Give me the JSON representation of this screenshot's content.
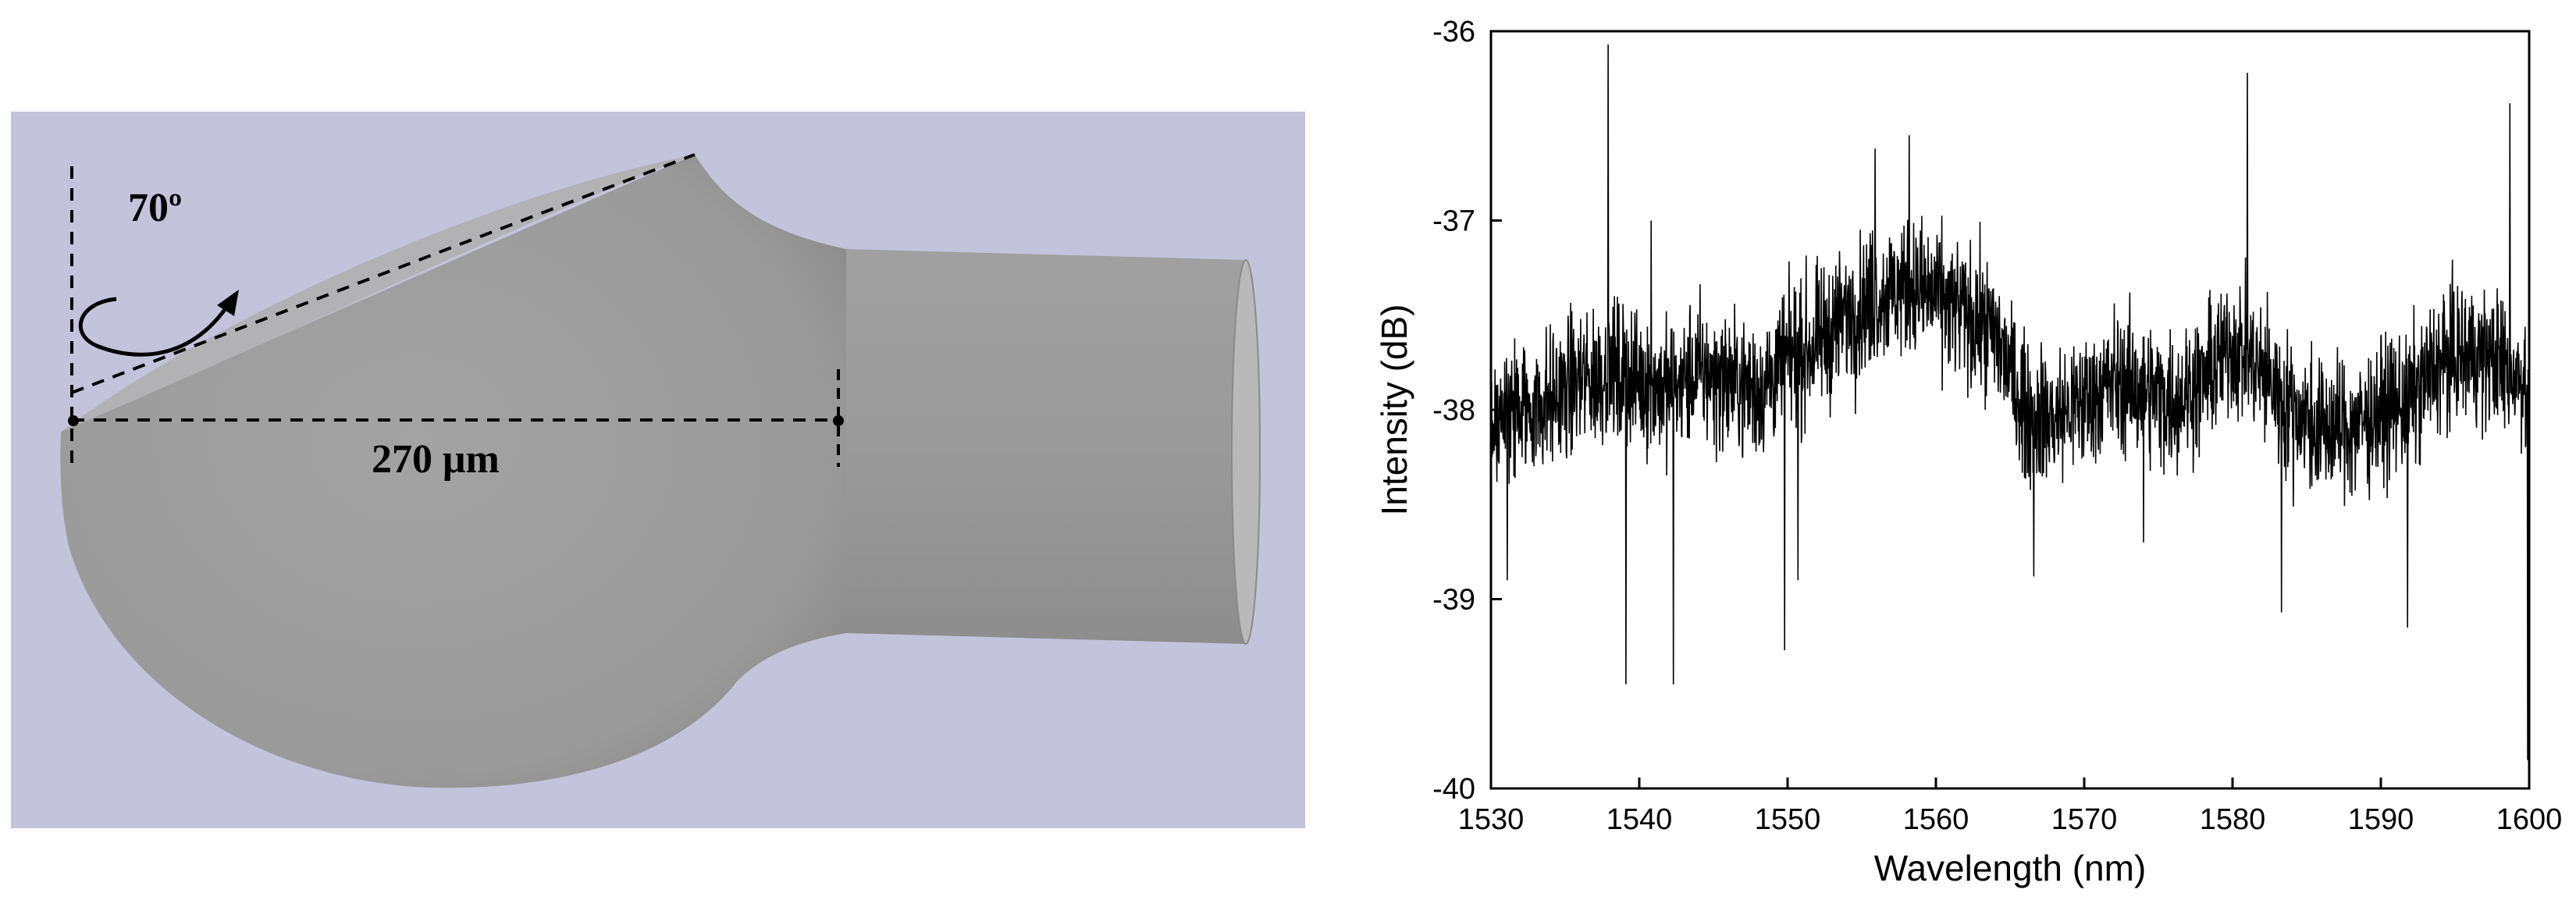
{
  "figure": {
    "left_panel": {
      "angle_label": "70º",
      "length_label": "270 μm",
      "colors": {
        "background": "#c3c3dc",
        "body_gray": "#9c9c9c",
        "dash": "#000000"
      }
    }
  },
  "chart_data": {
    "type": "line",
    "title": "",
    "xlabel": "Wavelength (nm)",
    "ylabel": "Intensity (dB)",
    "xlim": [
      1530,
      1600
    ],
    "ylim": [
      -40,
      -36
    ],
    "xticks": [
      1530,
      1540,
      1550,
      1560,
      1570,
      1580,
      1590,
      1600
    ],
    "yticks": [
      -40,
      -39,
      -38,
      -37,
      -36
    ],
    "grid": false,
    "legend": "none",
    "line_color": "#000000",
    "series": [
      {
        "envelope_x": [
          1530,
          1532,
          1534,
          1536,
          1538,
          1540,
          1542,
          1544,
          1546,
          1548,
          1550,
          1552,
          1554,
          1556,
          1558,
          1560,
          1562,
          1564,
          1566,
          1568,
          1570,
          1572,
          1574,
          1576,
          1578,
          1580,
          1582,
          1584,
          1586,
          1588,
          1590,
          1592,
          1594,
          1596,
          1598,
          1600
        ],
        "envelope_y": [
          -38.05,
          -38.0,
          -37.95,
          -37.85,
          -37.8,
          -37.85,
          -37.9,
          -37.8,
          -37.85,
          -37.9,
          -37.75,
          -37.65,
          -37.5,
          -37.4,
          -37.35,
          -37.4,
          -37.5,
          -37.6,
          -38.0,
          -38.05,
          -37.95,
          -37.85,
          -37.9,
          -37.95,
          -37.85,
          -37.65,
          -37.8,
          -38.0,
          -38.1,
          -38.1,
          -38.0,
          -37.95,
          -37.75,
          -37.7,
          -37.75,
          -37.85
        ],
        "spikes_x": [
          1531.1,
          1537.9,
          1539.1,
          1540.8,
          1542.3,
          1549.8,
          1550.7,
          1555.9,
          1558.2,
          1566.6,
          1574.0,
          1581.0,
          1583.3,
          1591.8,
          1598.7,
          1599.9
        ],
        "spikes_y": [
          -38.9,
          -36.07,
          -39.45,
          -37.0,
          -39.45,
          -39.27,
          -38.9,
          -36.62,
          -36.55,
          -38.88,
          -38.7,
          -36.22,
          -39.07,
          -39.15,
          -36.38,
          -39.85
        ]
      }
    ]
  }
}
